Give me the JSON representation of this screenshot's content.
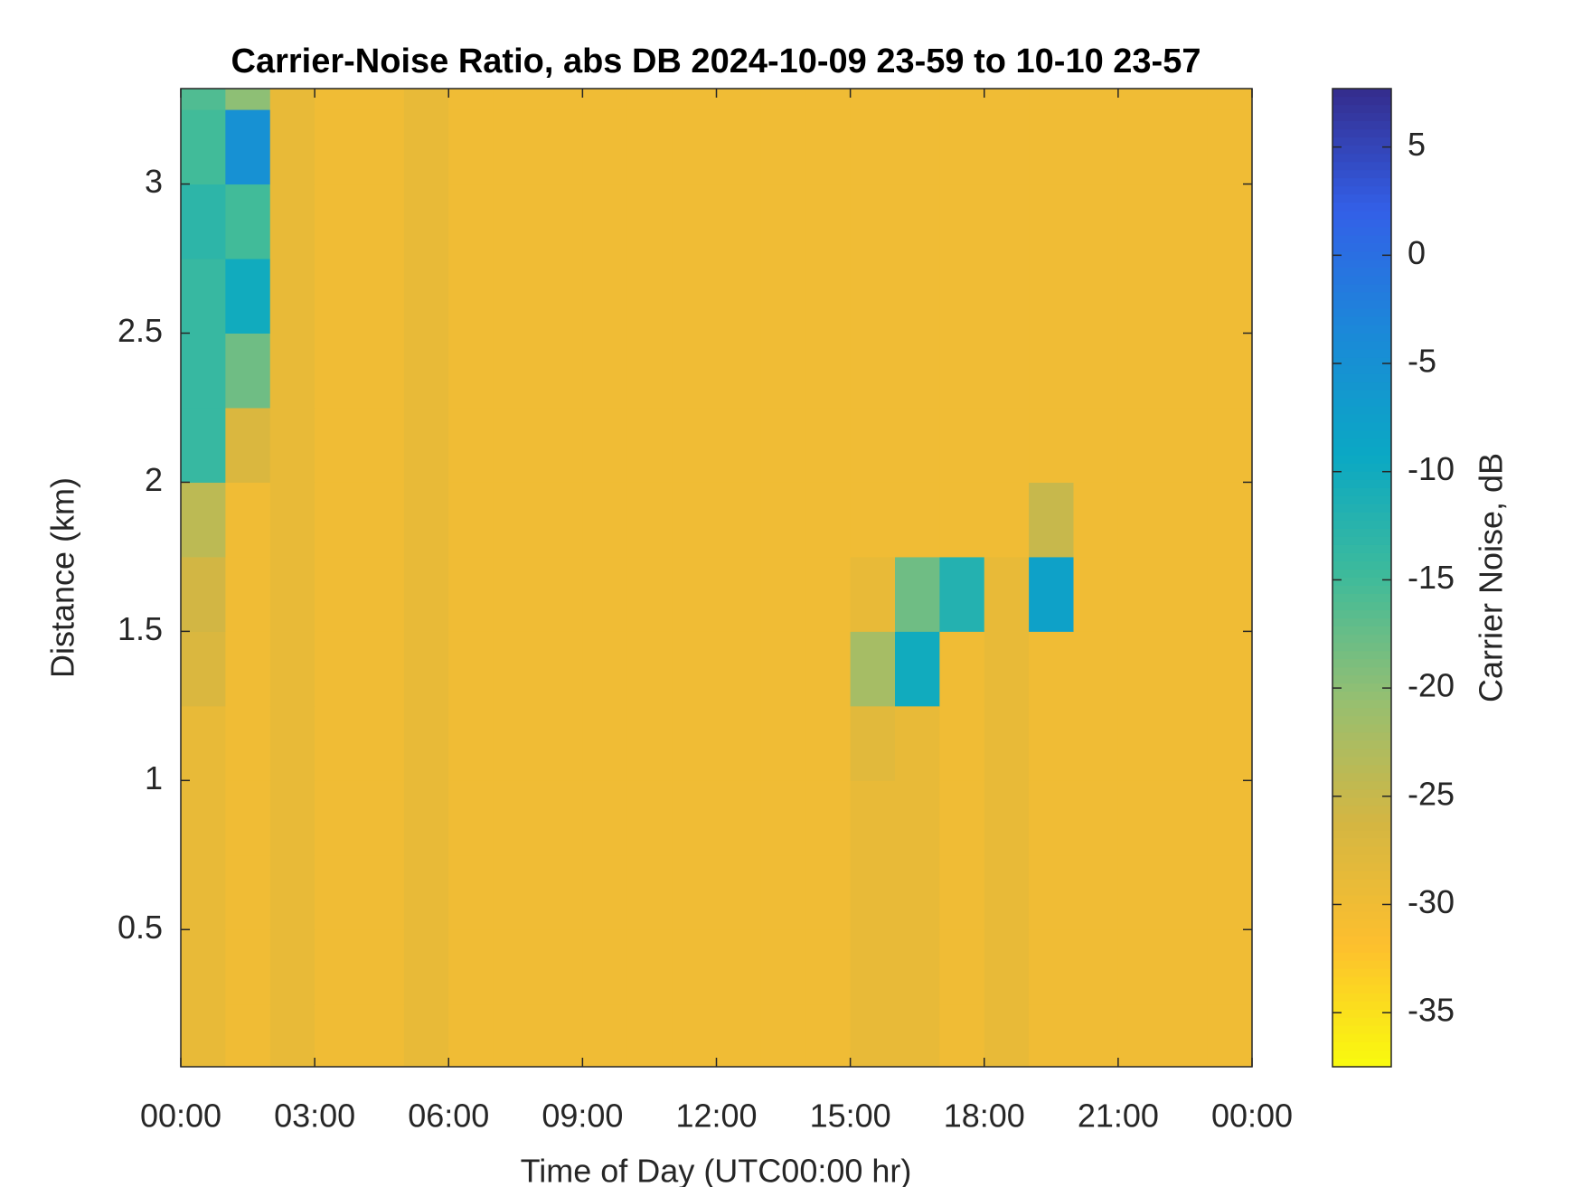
{
  "chart_data": {
    "type": "heatmap",
    "title": "Carrier-Noise Ratio, abs DB 2024-10-09 23-59 to 10-10 23-57",
    "x_label": "Time of Day (UTC00:00 hr)",
    "y_label": "Distance (km)",
    "colorbar_label": "Carrier Noise, dB",
    "xlim": [
      0,
      24
    ],
    "xticks": [
      {
        "value": 0,
        "label": "00:00"
      },
      {
        "value": 3,
        "label": "03:00"
      },
      {
        "value": 6,
        "label": "06:00"
      },
      {
        "value": 9,
        "label": "09:00"
      },
      {
        "value": 12,
        "label": "12:00"
      },
      {
        "value": 15,
        "label": "15:00"
      },
      {
        "value": 18,
        "label": "18:00"
      },
      {
        "value": 21,
        "label": "21:00"
      },
      {
        "value": 24,
        "label": "00:00"
      }
    ],
    "ylim": [
      0.04,
      3.32
    ],
    "yticks": [
      0.5,
      1,
      1.5,
      2,
      2.5,
      3
    ],
    "clim": [
      -37.5,
      7.7
    ],
    "cticks": [
      -35,
      -30,
      -25,
      -20,
      -15,
      -10,
      -5,
      0,
      5
    ],
    "colormap": [
      "#f9fb0e",
      "#fdbf2e",
      "#d4b642",
      "#96bf71",
      "#3fbb9a",
      "#0aa8c4",
      "#1b89d8",
      "#3360e8",
      "#342c8c"
    ],
    "xbins": [
      0,
      1,
      2,
      3,
      4,
      5,
      6,
      7,
      8,
      9,
      10,
      11,
      12,
      13,
      14,
      15,
      16,
      17,
      18,
      19,
      20,
      21,
      22,
      23,
      24
    ],
    "ybins": [
      0.04,
      0.25,
      0.5,
      0.75,
      1,
      1.25,
      1.5,
      1.75,
      2,
      2.25,
      2.5,
      2.75,
      3,
      3.25,
      3.32
    ],
    "values": [
      [
        -29,
        -30,
        -29,
        -30,
        -30,
        -29,
        -30,
        -30,
        -30,
        -30,
        -30,
        -30,
        -30,
        -30,
        -30,
        -29,
        -29,
        -30,
        -29,
        -30,
        -30,
        -30,
        -30,
        -30
      ],
      [
        -29,
        -30,
        -29,
        -30,
        -30,
        -29,
        -30,
        -30,
        -30,
        -30,
        -30,
        -30,
        -30,
        -30,
        -30,
        -29,
        -29,
        -30,
        -29,
        -30,
        -30,
        -30,
        -30,
        -30
      ],
      [
        -29,
        -30,
        -29,
        -30,
        -30,
        -29,
        -30,
        -30,
        -30,
        -30,
        -30,
        -30,
        -30,
        -30,
        -30,
        -29,
        -29,
        -30,
        -29,
        -30,
        -30,
        -30,
        -30,
        -30
      ],
      [
        -29,
        -30,
        -29,
        -30,
        -30,
        -29,
        -30,
        -30,
        -30,
        -30,
        -30,
        -30,
        -30,
        -30,
        -30,
        -29,
        -29,
        -30,
        -29,
        -30,
        -30,
        -30,
        -30,
        -30
      ],
      [
        -29,
        -30,
        -29,
        -30,
        -30,
        -29,
        -30,
        -30,
        -30,
        -30,
        -30,
        -30,
        -30,
        -30,
        -30,
        -28,
        -29,
        -30,
        -29,
        -30,
        -30,
        -30,
        -30,
        -30
      ],
      [
        -27,
        -30,
        -29,
        -30,
        -30,
        -29,
        -30,
        -30,
        -30,
        -30,
        -30,
        -30,
        -30,
        -30,
        -30,
        -22,
        -10,
        -30,
        -29,
        -30,
        -30,
        -30,
        -30,
        -30
      ],
      [
        -26,
        -30,
        -29,
        -30,
        -30,
        -29,
        -30,
        -30,
        -30,
        -30,
        -30,
        -30,
        -30,
        -30,
        -30,
        -29,
        -18,
        -12,
        -29,
        -8,
        -30,
        -30,
        -30,
        -30
      ],
      [
        -24,
        -30,
        -29,
        -30,
        -30,
        -29,
        -30,
        -30,
        -30,
        -30,
        -30,
        -30,
        -30,
        -30,
        -30,
        -30,
        -30,
        -30,
        -30,
        -25,
        -30,
        -30,
        -30,
        -30
      ],
      [
        -14,
        -27,
        -29,
        -30,
        -30,
        -29,
        -30,
        -30,
        -30,
        -30,
        -30,
        -30,
        -30,
        -30,
        -30,
        -30,
        -30,
        -30,
        -30,
        -30,
        -30,
        -30,
        -30,
        -30
      ],
      [
        -14,
        -18,
        -29,
        -30,
        -30,
        -29,
        -30,
        -30,
        -30,
        -30,
        -30,
        -30,
        -30,
        -30,
        -30,
        -30,
        -30,
        -30,
        -30,
        -30,
        -30,
        -30,
        -30,
        -30
      ],
      [
        -14,
        -10,
        -29,
        -30,
        -30,
        -29,
        -30,
        -30,
        -30,
        -30,
        -30,
        -30,
        -30,
        -30,
        -30,
        -30,
        -30,
        -30,
        -30,
        -30,
        -30,
        -30,
        -30,
        -30
      ],
      [
        -13,
        -15,
        -29,
        -30,
        -30,
        -29,
        -30,
        -30,
        -30,
        -30,
        -30,
        -30,
        -30,
        -30,
        -30,
        -30,
        -30,
        -30,
        -30,
        -30,
        -30,
        -30,
        -30,
        -30
      ],
      [
        -15,
        -5,
        -29,
        -30,
        -30,
        -29,
        -30,
        -30,
        -30,
        -30,
        -30,
        -30,
        -30,
        -30,
        -30,
        -30,
        -30,
        -30,
        -30,
        -30,
        -30,
        -30,
        -30,
        -30
      ],
      [
        -16,
        -20,
        -29,
        -30,
        -30,
        -29,
        -30,
        -30,
        -30,
        -30,
        -30,
        -30,
        -30,
        -30,
        -30,
        -30,
        -30,
        -30,
        -30,
        -30,
        -30,
        -30,
        -30,
        -30
      ]
    ]
  }
}
